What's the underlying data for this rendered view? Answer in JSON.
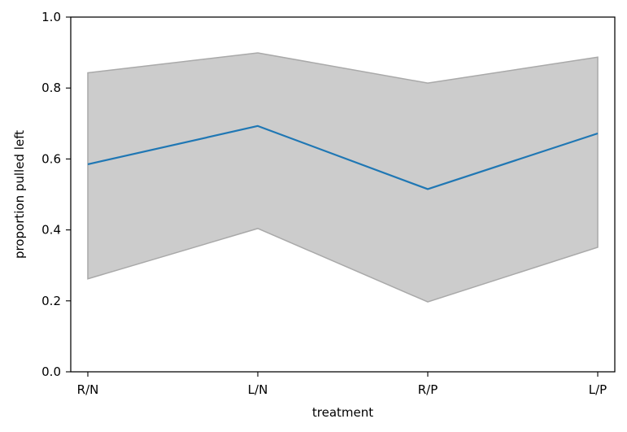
{
  "chart_data": {
    "type": "line",
    "categories": [
      "R/N",
      "L/N",
      "R/P",
      "L/P"
    ],
    "series": [
      {
        "values": [
          0.585,
          0.693,
          0.515,
          0.672
        ],
        "color": "#1f77b4"
      }
    ],
    "interval": {
      "lower": [
        0.262,
        0.404,
        0.197,
        0.351
      ],
      "upper": [
        0.843,
        0.899,
        0.814,
        0.887
      ],
      "fill_color": "#cccccc",
      "edge_color": "#a9a9a9"
    },
    "xlabel": "treatment",
    "ylabel": "proportion pulled left",
    "ylim": [
      0.0,
      1.0
    ],
    "yticks": [
      "0.0",
      "0.2",
      "0.4",
      "0.6",
      "0.8",
      "1.0"
    ],
    "grid": false
  }
}
